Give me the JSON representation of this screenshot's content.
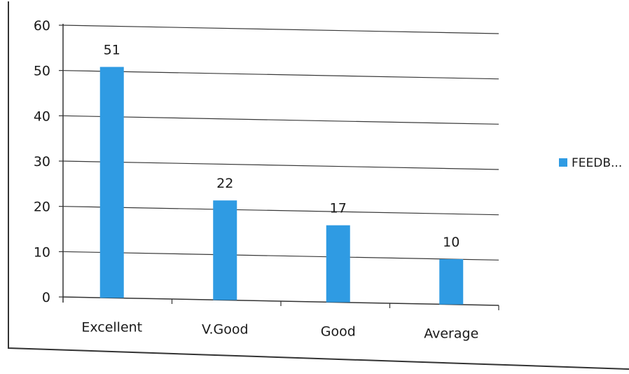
{
  "chart_data": {
    "type": "bar",
    "categories": [
      "Excellent",
      "V.Good",
      "Good",
      "Average"
    ],
    "series": [
      {
        "name": "FEEDB...",
        "values": [
          51,
          22,
          17,
          10
        ],
        "color": "#2f9be3"
      }
    ],
    "data_labels": [
      "51",
      "22",
      "17",
      "10"
    ],
    "y_ticks": [
      "0",
      "10",
      "20",
      "30",
      "40",
      "50",
      "60"
    ],
    "ylim": [
      0,
      60
    ],
    "grid": true,
    "legend_position": "right",
    "legend_label": "FEEDB..."
  }
}
